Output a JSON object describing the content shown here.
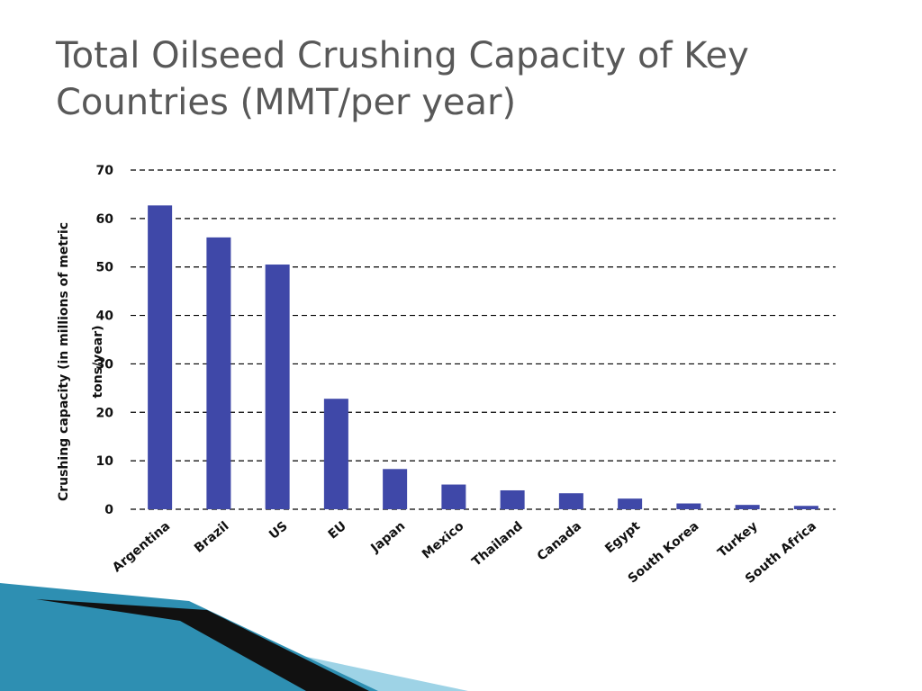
{
  "slide": {
    "title_line1": "Total Oilseed Crushing Capacity of Key",
    "title_line2": "Countries (MMT/per year)"
  },
  "colors": {
    "bar": "#3F48A8",
    "title": "#585858",
    "decor_dark": "#111111",
    "decor_teal": "#2E8FB2",
    "decor_light": "#9ED3E6"
  },
  "chart_data": {
    "type": "bar",
    "title": "",
    "xlabel": "",
    "ylabel_line1": "Crushing capacity (in millions of metric",
    "ylabel_line2": "tons/year)",
    "ylim": [
      0,
      70
    ],
    "yticks": [
      0,
      10,
      20,
      30,
      40,
      50,
      60,
      70
    ],
    "grid": "dashed horizontal",
    "legend": "none",
    "categories": [
      "Argentina",
      "Brazil",
      "US",
      "EU",
      "Japan",
      "Mexico",
      "Thailand",
      "Canada",
      "Egypt",
      "South Korea",
      "Turkey",
      "South Africa"
    ],
    "values": [
      62.7,
      56.1,
      50.5,
      22.8,
      8.3,
      5.1,
      3.9,
      3.3,
      2.2,
      1.2,
      0.9,
      0.7
    ]
  }
}
